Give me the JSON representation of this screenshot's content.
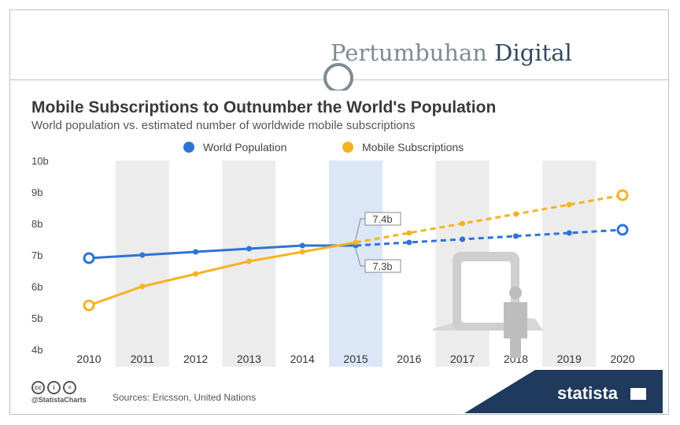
{
  "slide": {
    "title_part1": "Pertumbuhan",
    "title_part2": "Digital"
  },
  "chart_data": {
    "type": "line",
    "title": "Mobile Subscriptions to Outnumber the World's Population",
    "subtitle": "World population vs. estimated number of worldwide mobile subscriptions",
    "categories": [
      "2010",
      "2011",
      "2012",
      "2013",
      "2014",
      "2015",
      "2016",
      "2017",
      "2018",
      "2019",
      "2020"
    ],
    "ylim": [
      4,
      10
    ],
    "yticks": [
      "4b",
      "5b",
      "6b",
      "7b",
      "8b",
      "9b",
      "10b"
    ],
    "series": [
      {
        "name": "World Population",
        "color": "#2f73d7",
        "values": [
          6.9,
          7.0,
          7.1,
          7.2,
          7.3,
          7.3,
          7.4,
          7.5,
          7.6,
          7.7,
          7.8
        ]
      },
      {
        "name": "Mobile Subscriptions",
        "color": "#f5b324",
        "values": [
          5.4,
          6.0,
          6.4,
          6.8,
          7.1,
          7.4,
          7.7,
          8.0,
          8.3,
          8.6,
          8.9
        ]
      }
    ],
    "estimate_from": "2015",
    "highlight_category": "2015",
    "annotations": [
      {
        "series": "Mobile Subscriptions",
        "category": "2015",
        "text": "7.4b"
      },
      {
        "series": "World Population",
        "category": "2015",
        "text": "7.3b"
      }
    ]
  },
  "footer": {
    "license_icons": [
      "cc",
      "i",
      "="
    ],
    "handle": "@StatistaCharts",
    "sources": "Sources: Ericsson, United Nations",
    "brand": "statista"
  },
  "colors": {
    "band": "#ececec",
    "highlight": "#dbe6f7",
    "brand_band": "#1f3a5c"
  }
}
